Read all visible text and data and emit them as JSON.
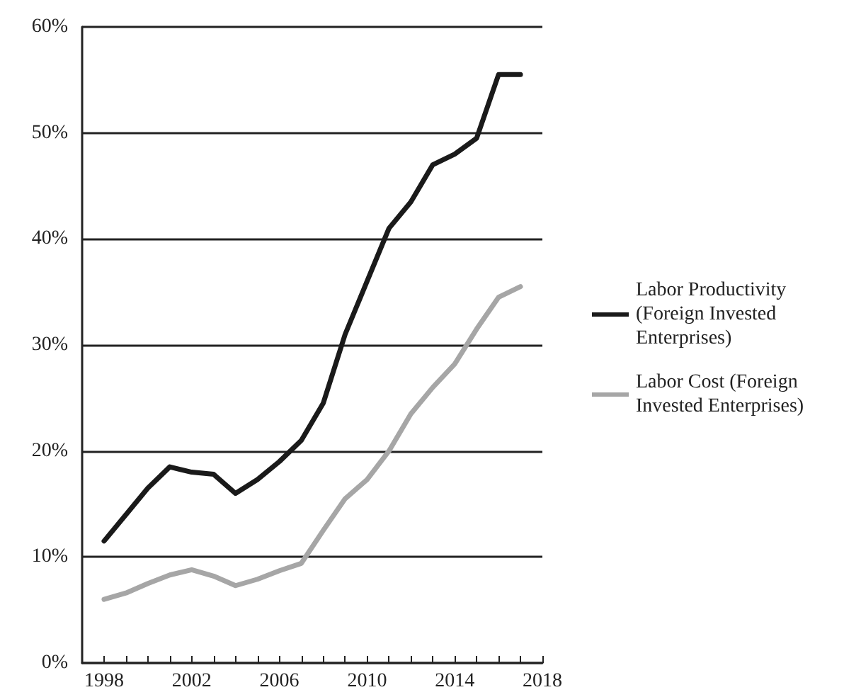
{
  "chart_data": {
    "type": "line",
    "x": [
      1998,
      1999,
      2000,
      2001,
      2002,
      2003,
      2004,
      2005,
      2006,
      2007,
      2008,
      2009,
      2010,
      2011,
      2012,
      2013,
      2014,
      2015,
      2016,
      2017
    ],
    "series": [
      {
        "name": "Labor Productivity (Foreign Invested Enterprises)",
        "color": "#1a1a1a",
        "values": [
          11.5,
          14,
          16.5,
          18.5,
          18,
          17.8,
          16,
          17.3,
          19,
          21,
          24.5,
          31,
          36,
          41,
          43.5,
          47,
          48,
          49.5,
          55.5,
          55.5
        ]
      },
      {
        "name": "Labor Cost (Foreign Invested Enterprises)",
        "color": "#a6a6a6",
        "values": [
          6,
          6.6,
          7.5,
          8.3,
          8.8,
          8.2,
          7.3,
          7.9,
          8.7,
          9.4,
          12.5,
          15.5,
          17.3,
          20,
          23.5,
          26,
          28.2,
          31.5,
          34.5,
          35.5
        ]
      }
    ],
    "xlim": [
      1997,
      2018
    ],
    "xticks": [
      1998,
      {
        "value": 1999,
        "label": null
      },
      {
        "value": 2000,
        "label": null
      },
      {
        "value": 2001,
        "label": null
      },
      2002,
      {
        "value": 2003,
        "label": null
      },
      {
        "value": 2004,
        "label": null
      },
      {
        "value": 2005,
        "label": null
      },
      2006,
      {
        "value": 2007,
        "label": null
      },
      {
        "value": 2008,
        "label": null
      },
      {
        "value": 2009,
        "label": null
      },
      2010,
      {
        "value": 2011,
        "label": null
      },
      {
        "value": 2012,
        "label": null
      },
      {
        "value": 2013,
        "label": null
      },
      2014,
      {
        "value": 2015,
        "label": null
      },
      {
        "value": 2016,
        "label": null
      },
      {
        "value": 2017,
        "label": null
      },
      2018
    ],
    "ylim": [
      0,
      60
    ],
    "yticks": [
      {
        "value": 0,
        "label": "0%"
      },
      {
        "value": 10,
        "label": "10%"
      },
      {
        "value": 20,
        "label": "20%"
      },
      {
        "value": 30,
        "label": "30%"
      },
      {
        "value": 40,
        "label": "40%"
      },
      {
        "value": 50,
        "label": "50%"
      },
      {
        "value": 60,
        "label": "60%"
      }
    ],
    "grid": "y",
    "legend": "right",
    "marker": "none",
    "line_style": "solid"
  }
}
